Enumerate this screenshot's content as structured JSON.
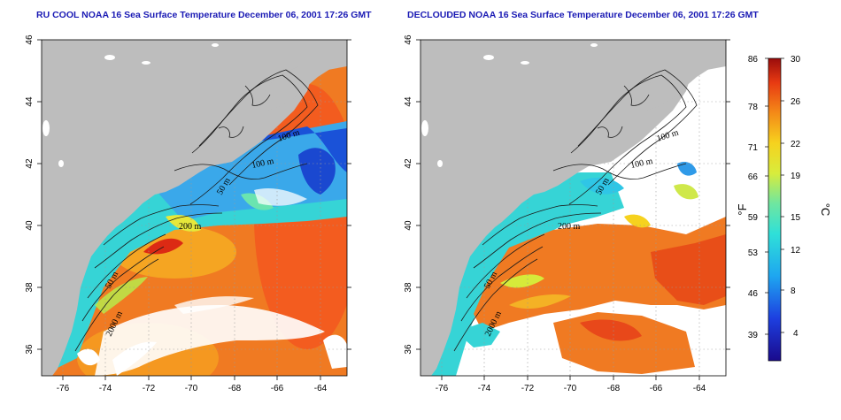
{
  "titles": {
    "left": "RU COOL NOAA 16 Sea Surface Temperature December 06, 2001 17:26 GMT",
    "right": "DECLOUDED NOAA 16 Sea Surface Temperature December 06, 2001 17:26 GMT"
  },
  "axes": {
    "lat_ticks": [
      "46",
      "44",
      "42",
      "40",
      "38",
      "36"
    ],
    "lon_ticks": [
      "-76",
      "-74",
      "-72",
      "-70",
      "-68",
      "-66",
      "-64"
    ]
  },
  "contour_labels": {
    "left": [
      "100 m",
      "100 m",
      "50 m",
      "200 m",
      "50 m",
      "2000 m"
    ],
    "right": [
      "100 m",
      "100 m",
      "50 m",
      "200 m",
      "50 m",
      "2000 m"
    ]
  },
  "colorbar": {
    "fahrenheit_ticks": [
      "86",
      "78",
      "71",
      "66",
      "59",
      "53",
      "46",
      "39"
    ],
    "celsius_ticks": [
      "30",
      "26",
      "22",
      "19",
      "15",
      "12",
      "8",
      "4"
    ],
    "fahrenheit_unit": "°F",
    "celsius_unit": "°C"
  },
  "colors": {
    "land": "#bdbdbd",
    "title": "#1a1ab4",
    "warm": "#f07a22",
    "cool": "#33d2d8",
    "cold": "#1a4fd4"
  }
}
